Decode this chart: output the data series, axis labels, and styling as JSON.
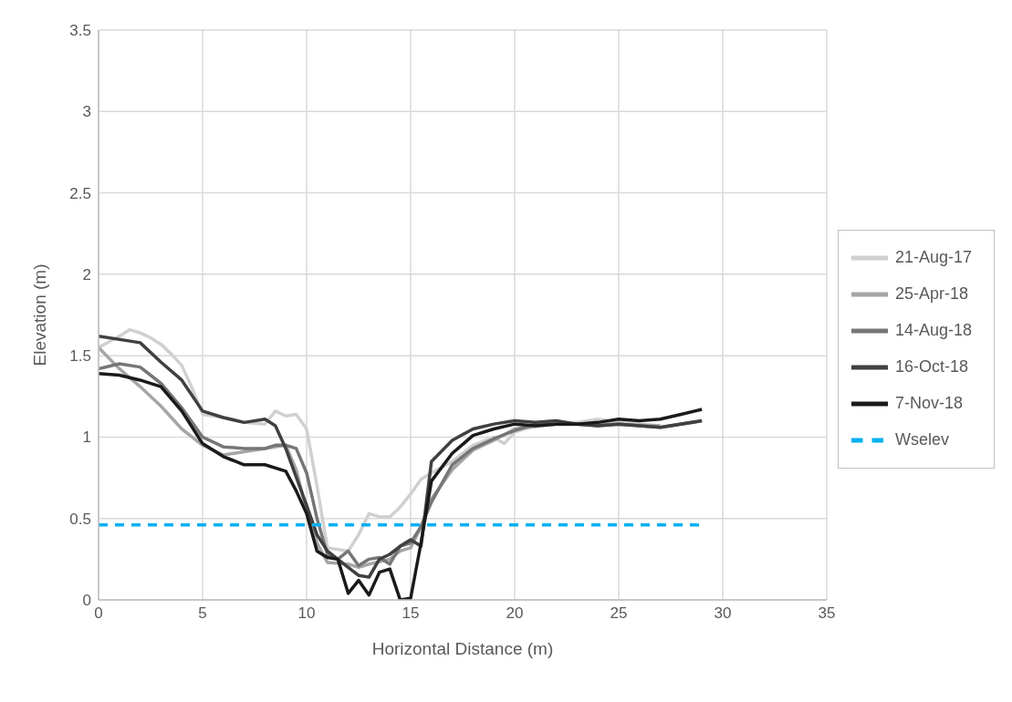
{
  "chart_data": {
    "type": "line",
    "xlabel": "Horizontal Distance (m)",
    "ylabel": "Elevation (m)",
    "xlim": [
      0,
      35
    ],
    "xticks": [
      0,
      5,
      10,
      15,
      20,
      25,
      30,
      35
    ],
    "ylim": [
      0,
      3.5
    ],
    "yticks": [
      0,
      0.5,
      1,
      1.5,
      2,
      2.5,
      3,
      3.5
    ],
    "grid": true,
    "legend": "right",
    "marker": "none",
    "line_style": "solid",
    "series": [
      {
        "name": "21-Aug-17",
        "color": "#d0d0d0",
        "x": [
          0,
          1,
          1.5,
          2,
          2.5,
          3,
          3.5,
          4,
          4.5,
          5,
          6,
          7,
          8,
          8.5,
          9,
          9.5,
          10,
          10.5,
          11,
          12,
          12.5,
          13,
          13.5,
          14,
          14.5,
          15,
          15.5,
          16,
          17,
          18,
          19,
          19.5,
          20,
          21,
          22,
          23,
          24,
          25,
          27
        ],
        "values": [
          1.55,
          1.62,
          1.66,
          1.64,
          1.61,
          1.57,
          1.51,
          1.44,
          1.3,
          1.14,
          1.12,
          1.09,
          1.08,
          1.16,
          1.13,
          1.14,
          1.05,
          0.7,
          0.32,
          0.3,
          0.4,
          0.53,
          0.51,
          0.51,
          0.57,
          0.65,
          0.74,
          0.78,
          0.85,
          0.95,
          1,
          0.96,
          1.03,
          1.07,
          1.08,
          1.09,
          1.11,
          1.09,
          1.07
        ]
      },
      {
        "name": "25-Apr-18",
        "color": "#a6a6a6",
        "x": [
          0,
          1,
          2,
          3,
          4,
          5,
          6,
          7,
          8,
          9,
          9.5,
          10,
          10.5,
          11,
          12,
          12.5,
          13,
          14,
          14.5,
          15,
          15.5,
          16,
          17,
          18,
          19,
          20,
          22,
          25,
          27
        ],
        "values": [
          1.55,
          1.42,
          1.31,
          1.19,
          1.05,
          0.95,
          0.89,
          0.91,
          0.93,
          0.95,
          0.8,
          0.55,
          0.35,
          0.23,
          0.22,
          0.2,
          0.22,
          0.25,
          0.3,
          0.32,
          0.45,
          0.62,
          0.8,
          0.92,
          0.98,
          1.05,
          1.08,
          1.08,
          1.07
        ]
      },
      {
        "name": "14-Aug-18",
        "color": "#767676",
        "x": [
          0,
          1,
          2,
          3,
          4,
          5,
          6,
          7,
          8,
          8.5,
          9,
          9.5,
          10,
          10.5,
          11,
          11.5,
          12,
          12.5,
          13,
          13.5,
          14,
          14.5,
          15,
          15.5,
          16,
          17,
          18,
          19,
          20,
          21,
          22,
          23,
          24,
          25,
          27,
          29
        ],
        "values": [
          1.42,
          1.45,
          1.43,
          1.33,
          1.18,
          1,
          0.94,
          0.93,
          0.93,
          0.95,
          0.95,
          0.93,
          0.78,
          0.5,
          0.28,
          0.25,
          0.3,
          0.21,
          0.25,
          0.26,
          0.22,
          0.33,
          0.35,
          0.45,
          0.6,
          0.83,
          0.93,
          0.99,
          1.04,
          1.08,
          1.08,
          1.08,
          1.07,
          1.08,
          1.06,
          1.1
        ]
      },
      {
        "name": "16-Oct-18",
        "color": "#404040",
        "x": [
          0,
          2,
          3,
          4,
          5,
          6,
          7,
          8,
          8.5,
          9,
          10,
          10.5,
          11,
          12,
          12.5,
          13,
          13.5,
          14,
          14.5,
          15,
          15.5,
          16,
          17,
          18,
          19,
          20,
          21,
          22,
          23,
          24,
          25,
          27,
          29
        ],
        "values": [
          1.62,
          1.58,
          1.46,
          1.35,
          1.16,
          1.12,
          1.09,
          1.11,
          1.07,
          0.93,
          0.58,
          0.4,
          0.3,
          0.2,
          0.15,
          0.14,
          0.25,
          0.28,
          0.33,
          0.37,
          0.33,
          0.85,
          0.98,
          1.05,
          1.08,
          1.1,
          1.09,
          1.1,
          1.08,
          1.07,
          1.08,
          1.06,
          1.1
        ]
      },
      {
        "name": "7-Nov-18",
        "color": "#1a1a1a",
        "x": [
          0,
          1,
          2,
          3,
          4,
          5,
          6,
          7,
          8,
          9,
          9.5,
          10,
          10.5,
          11,
          11.5,
          12,
          12.5,
          13,
          13.5,
          14,
          14.5,
          15,
          15.5,
          16,
          17,
          18,
          19,
          20,
          21,
          22,
          23,
          24,
          25,
          26,
          27,
          28,
          29
        ],
        "values": [
          1.39,
          1.38,
          1.35,
          1.31,
          1.16,
          0.96,
          0.88,
          0.83,
          0.83,
          0.79,
          0.67,
          0.53,
          0.3,
          0.26,
          0.25,
          0.04,
          0.12,
          0.03,
          0.17,
          0.19,
          0,
          0.01,
          0.35,
          0.73,
          0.9,
          1.01,
          1.05,
          1.08,
          1.07,
          1.08,
          1.08,
          1.09,
          1.11,
          1.1,
          1.11,
          1.14,
          1.17
        ]
      },
      {
        "name": "Wselev",
        "color": "#00b0f0",
        "line_style": "dashed",
        "x": [
          0,
          29
        ],
        "values": [
          0.46,
          0.46
        ]
      }
    ]
  }
}
